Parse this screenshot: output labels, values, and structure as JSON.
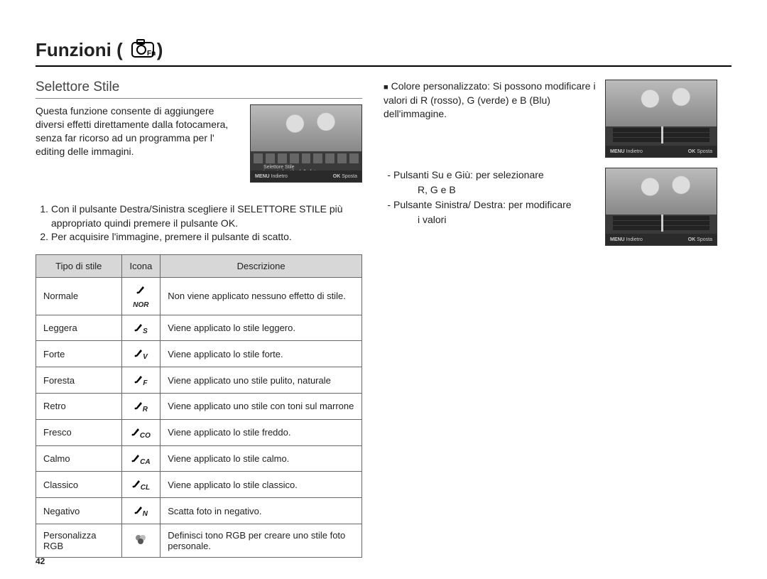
{
  "title": "Funzioni (",
  "title_close": ")",
  "subtitle": "Selettore Stile",
  "intro": "Questa funzione consente di aggiungere diversi effetti direttamente dalla fotocamera, senza far ricorso ad un programma per l' editing delle immagini.",
  "steps": [
    {
      "n": "1.",
      "t": "Con il pulsante Destra/Sinistra scegliere il SELETTORE STILE più appropriato quindi premere il pulsante OK."
    },
    {
      "n": "2.",
      "t": "Per acquisire l'immagine, premere il pulsante di scatto."
    }
  ],
  "table": {
    "headers": [
      "Tipo di stile",
      "Icona",
      "Descrizione"
    ],
    "rows": [
      [
        "Normale",
        "NOR",
        "Non viene applicato nessuno effetto di stile."
      ],
      [
        "Leggera",
        "S",
        "Viene applicato lo stile leggero."
      ],
      [
        "Forte",
        "V",
        "Viene applicato lo stile forte."
      ],
      [
        "Foresta",
        "F",
        "Viene applicato uno stile pulito, naturale"
      ],
      [
        "Retro",
        "R",
        "Viene applicato uno stile con toni sul marrone"
      ],
      [
        "Fresco",
        "CO",
        "Viene applicato lo stile freddo."
      ],
      [
        "Calmo",
        "CA",
        "Viene applicato lo stile calmo."
      ],
      [
        "Classico",
        "CL",
        "Viene applicato lo stile classico."
      ],
      [
        "Negativo",
        "N",
        "Scatta foto in negativo."
      ],
      [
        "Personalizza RGB",
        "",
        "Definisci tono RGB per creare uno stile foto personale."
      ]
    ]
  },
  "right": {
    "custom_label": "Colore personalizzato:",
    "custom_desc": "Si possono modificare i valori di R (rosso), G (verde) e B (Blu) dell'immagine.",
    "instructions": [
      {
        "dash": "-",
        "main": "Pulsanti Su e Giù: per selezionare",
        "sub": "R, G e B"
      },
      {
        "dash": "-",
        "main": "Pulsante Sinistra/ Destra: per modificare",
        "sub": "i valori"
      }
    ]
  },
  "screenshot_labels": {
    "back": "Indietro",
    "move": "Sposta",
    "menu": "MENU",
    "ok": "OK",
    "line1": "Selettore Stile",
    "line2": "Imposta lo stile della foto."
  },
  "page_number": "42",
  "colors": {
    "border": "#666666",
    "header_bg": "#d7d7d7",
    "title_rule": "#000000",
    "subtitle_rule": "#888888"
  }
}
